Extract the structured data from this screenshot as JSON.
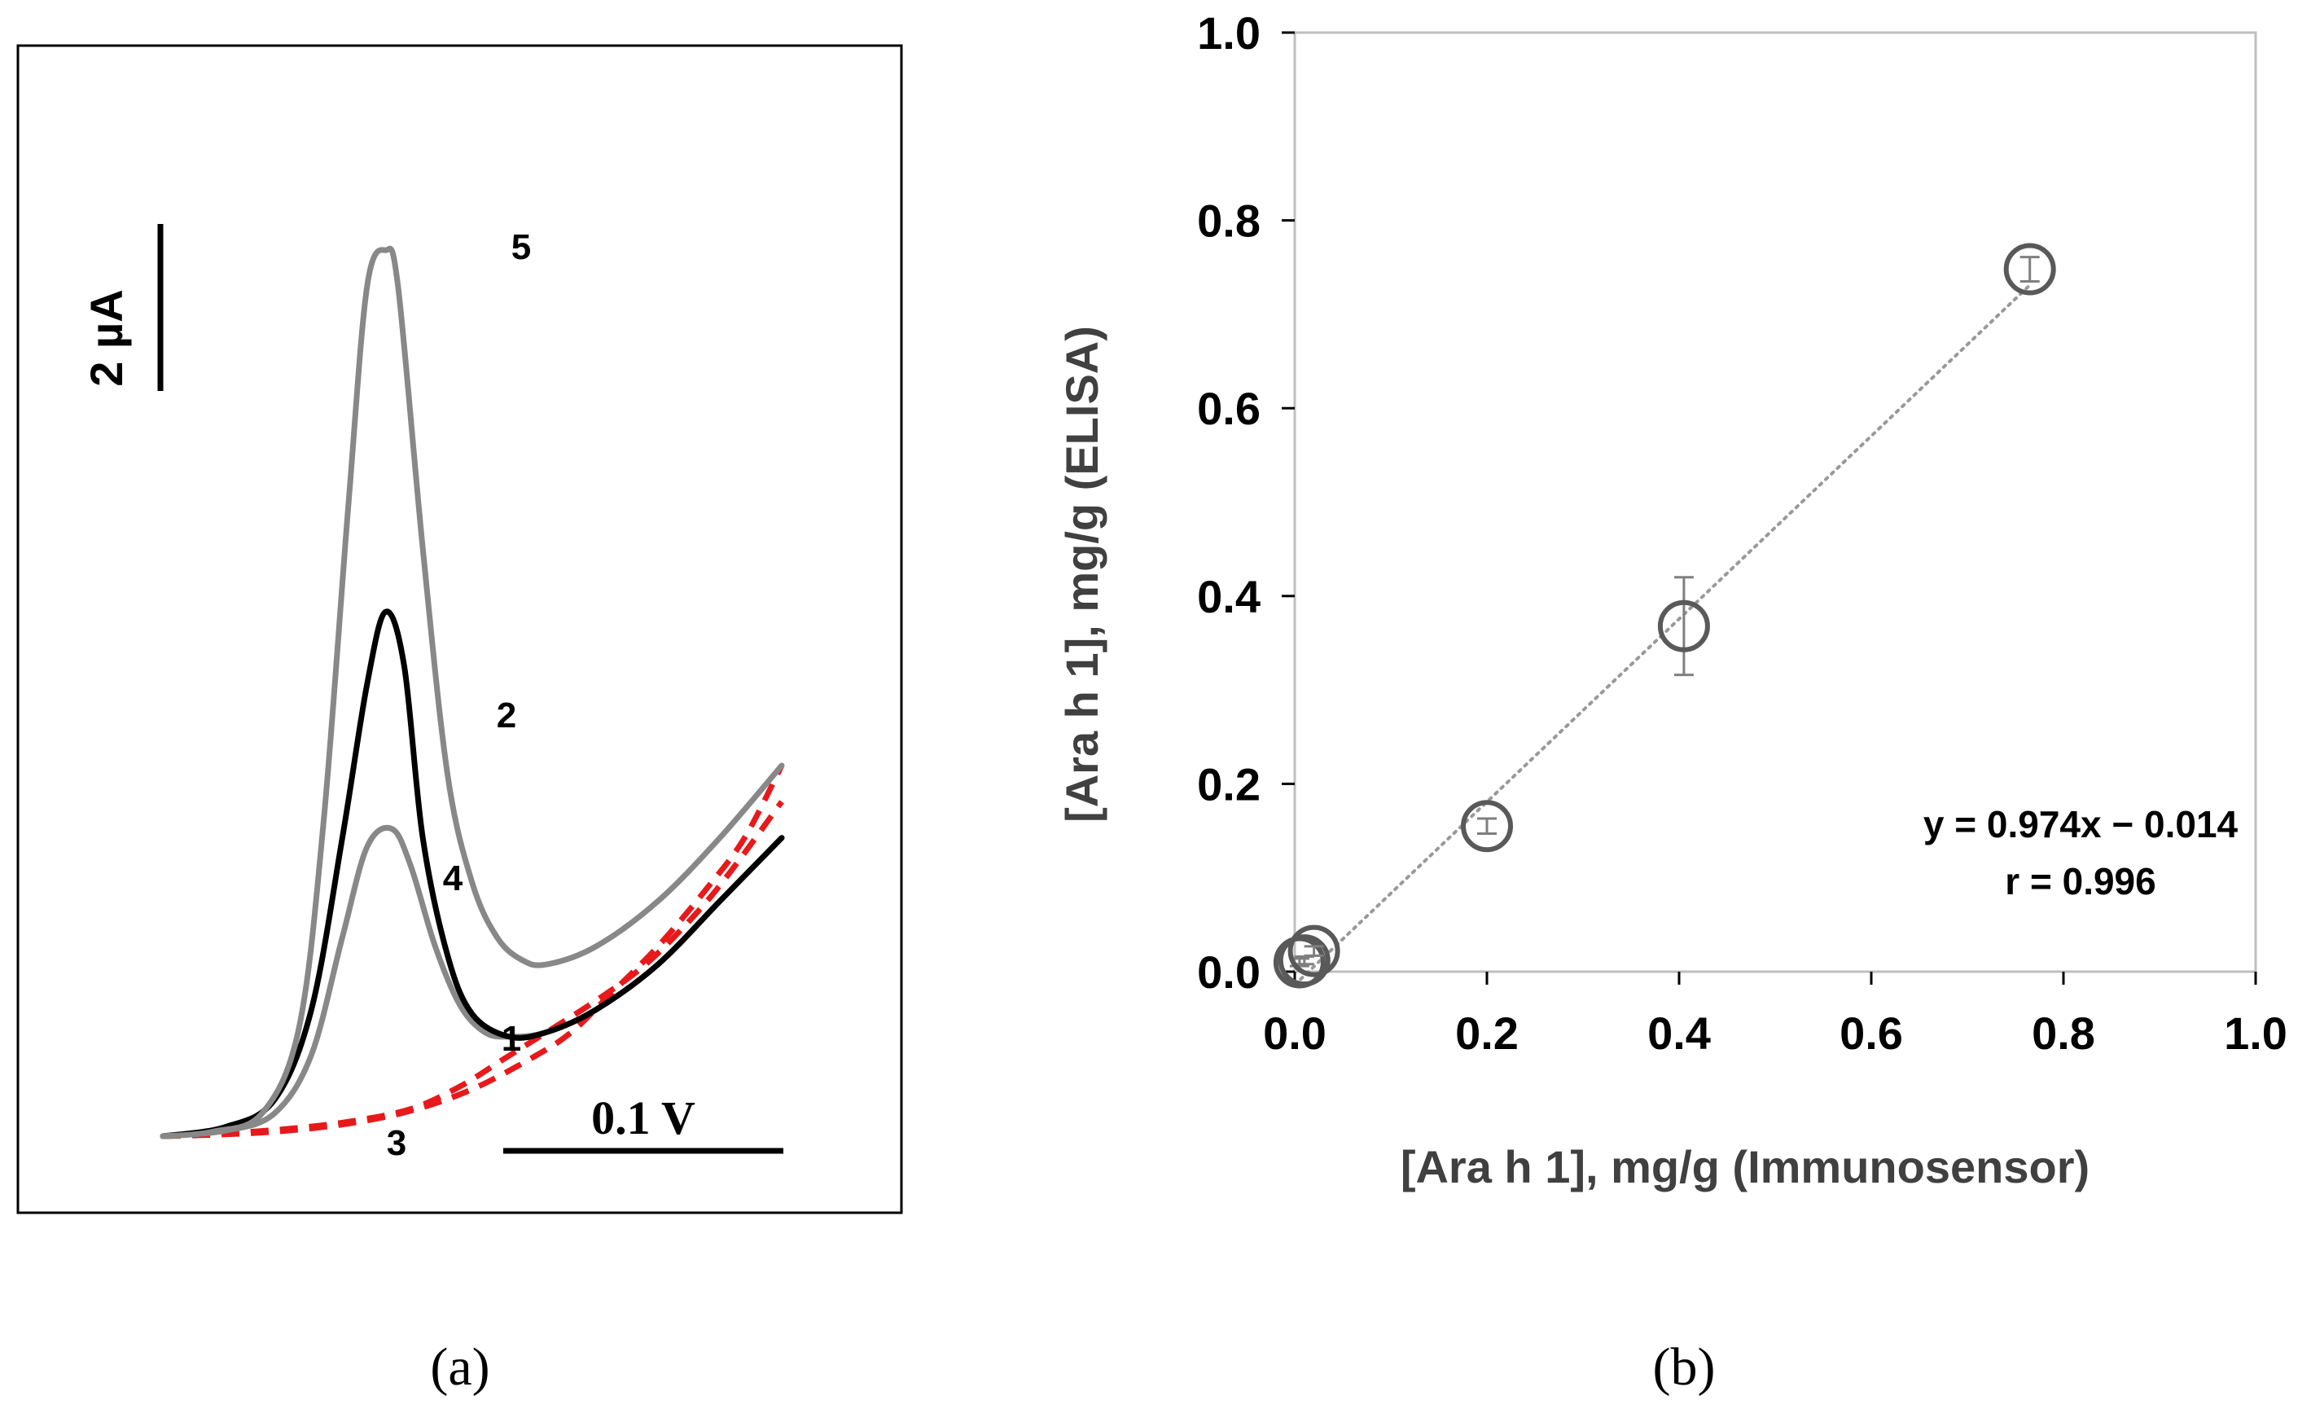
{
  "chart_data": [
    {
      "type": "line",
      "panel_label": "(a)",
      "title": "",
      "xlabel": "",
      "ylabel": "",
      "scale_bars": {
        "current": "2 µA",
        "potential": "0.1 V"
      },
      "series": [
        {
          "label": "1",
          "style": "red-dashed",
          "color": "#e8191b",
          "x": [
            0.0,
            0.1,
            0.2,
            0.3,
            0.4,
            0.48,
            0.55,
            0.62,
            0.7,
            0.78,
            0.86,
            0.92,
            1.0
          ],
          "y": [
            0.0,
            0.03,
            0.08,
            0.16,
            0.3,
            0.55,
            0.85,
            1.15,
            1.5,
            1.9,
            2.45,
            2.95,
            3.7
          ]
        },
        {
          "label": "2",
          "style": "black-solid",
          "color": "#000000",
          "x": [
            0.0,
            0.1,
            0.18,
            0.24,
            0.29,
            0.33,
            0.36,
            0.39,
            0.42,
            0.46,
            0.5,
            0.56,
            0.62,
            0.7,
            0.8,
            0.9,
            1.0
          ],
          "y": [
            0.0,
            0.1,
            0.4,
            1.4,
            3.3,
            5.0,
            5.8,
            5.2,
            3.3,
            2.0,
            1.35,
            1.1,
            1.15,
            1.4,
            1.9,
            2.6,
            3.3
          ]
        },
        {
          "label": "3",
          "style": "red-dashed",
          "color": "#e8191b",
          "x": [
            0.0,
            0.1,
            0.2,
            0.3,
            0.4,
            0.5,
            0.6,
            0.66,
            0.72,
            0.8,
            0.88,
            0.94,
            1.0
          ],
          "y": [
            0.0,
            0.02,
            0.06,
            0.14,
            0.28,
            0.52,
            0.88,
            1.15,
            1.55,
            2.1,
            2.75,
            3.3,
            4.1
          ]
        },
        {
          "label": "4",
          "style": "gray-solid",
          "color": "#888888",
          "x": [
            0.0,
            0.1,
            0.18,
            0.24,
            0.29,
            0.33,
            0.37,
            0.4,
            0.44,
            0.48,
            0.52,
            0.56,
            0.62,
            0.7,
            0.8,
            0.9,
            1.0
          ],
          "y": [
            0.0,
            0.06,
            0.25,
            0.9,
            2.2,
            3.2,
            3.4,
            3.0,
            2.1,
            1.45,
            1.15,
            1.1,
            1.15,
            1.4,
            1.9,
            2.6,
            3.3
          ]
        },
        {
          "label": "5",
          "style": "gray-solid",
          "color": "#888888",
          "x": [
            0.0,
            0.08,
            0.16,
            0.22,
            0.26,
            0.3,
            0.33,
            0.36,
            0.38,
            0.42,
            0.46,
            0.5,
            0.54,
            0.58,
            0.62,
            0.7,
            0.8,
            0.9,
            1.0
          ],
          "y": [
            0.0,
            0.05,
            0.25,
            1.2,
            3.5,
            7.0,
            9.4,
            9.8,
            9.4,
            6.5,
            4.0,
            2.8,
            2.2,
            1.95,
            1.9,
            2.1,
            2.6,
            3.3,
            4.1
          ]
        }
      ]
    },
    {
      "type": "scatter",
      "panel_label": "(b)",
      "title": "",
      "xlabel": "[Ara h 1], mg/g (Immunosensor)",
      "ylabel": "[Ara h 1], mg/g (ELISA)",
      "xlim": [
        0.0,
        1.0
      ],
      "ylim": [
        0.0,
        1.0
      ],
      "xticks": [
        "0.0",
        "0.2",
        "0.4",
        "0.6",
        "0.8",
        "1.0"
      ],
      "yticks": [
        "0.0",
        "0.2",
        "0.4",
        "0.6",
        "0.8",
        "1.0"
      ],
      "points": [
        {
          "x": 0.005,
          "y": 0.01,
          "err": 0.004
        },
        {
          "x": 0.01,
          "y": 0.012,
          "err": 0.004
        },
        {
          "x": 0.02,
          "y": 0.022,
          "err": 0.005
        },
        {
          "x": 0.2,
          "y": 0.155,
          "err": 0.008
        },
        {
          "x": 0.405,
          "y": 0.368,
          "err": 0.052
        },
        {
          "x": 0.765,
          "y": 0.748,
          "err": 0.013
        }
      ],
      "fit": {
        "slope": 0.974,
        "intercept": -0.014,
        "x_range": [
          0.0,
          0.765
        ]
      },
      "annotation": {
        "equation": "y = 0.974x − 0.014",
        "r": "r = 0.996"
      }
    }
  ]
}
